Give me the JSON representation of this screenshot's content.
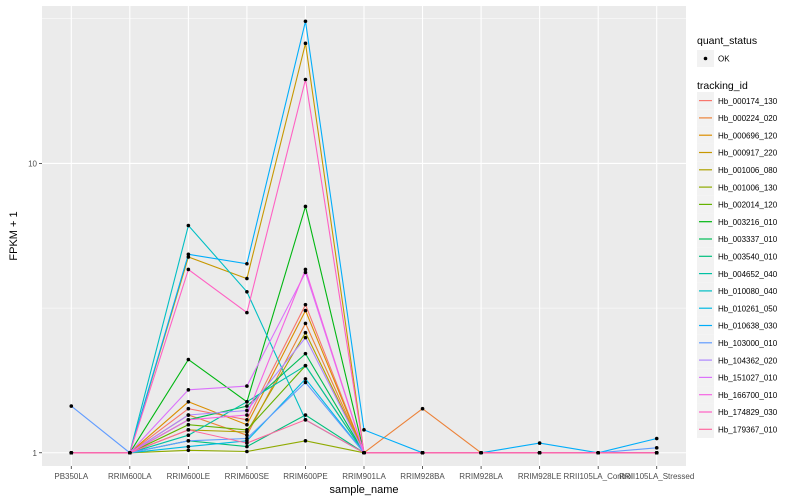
{
  "chart_data": {
    "type": "line",
    "xlabel": "sample_name",
    "ylabel": "FPKM + 1",
    "y_scale": "log10",
    "ylim": [
      0.9,
      35
    ],
    "y_ticks": [
      1,
      10
    ],
    "y_tick_labels": [
      "1",
      "10"
    ],
    "grid": true,
    "background": "#ebebeb",
    "legend_position": "right",
    "categories": [
      "PB350LA",
      "RRIM600LA",
      "RRIM600LE",
      "RRIM600SE",
      "RRIM600PE",
      "RRIM901LA",
      "RRIM928BA",
      "RRIM928LA",
      "RRIM928LE",
      "RRII105LA_Control",
      "RRII105LA_Stressed"
    ],
    "shape_legend": {
      "title": "quant_status",
      "items": [
        {
          "label": "OK",
          "shape": "point"
        }
      ]
    },
    "color_legend_title": "tracking_id",
    "series": [
      {
        "name": "Hb_000174_130",
        "color": "#F8766D",
        "values": [
          1,
          1,
          1.42,
          1.3,
          3.25,
          1,
          1,
          1,
          1,
          1,
          1
        ]
      },
      {
        "name": "Hb_000224_020",
        "color": "#EC8239",
        "values": [
          1,
          1,
          1.35,
          1.15,
          2.8,
          1,
          1.42,
          1,
          1,
          1,
          1
        ]
      },
      {
        "name": "Hb_000696_120",
        "color": "#DB8E00",
        "values": [
          1,
          1,
          1.5,
          1.25,
          3.1,
          1,
          1,
          1,
          1,
          1,
          1
        ]
      },
      {
        "name": "Hb_000917_220",
        "color": "#C79800",
        "values": [
          1,
          1,
          4.75,
          4.0,
          26.0,
          1,
          1,
          1,
          1,
          1,
          1
        ]
      },
      {
        "name": "Hb_001006_080",
        "color": "#AEA200",
        "values": [
          1,
          1,
          1.2,
          1.18,
          2.6,
          1,
          1,
          1,
          1,
          1,
          1
        ]
      },
      {
        "name": "Hb_001006_130",
        "color": "#8FAA00",
        "values": [
          1,
          1,
          1.02,
          1.01,
          1.1,
          1,
          1,
          1,
          1,
          1,
          1
        ]
      },
      {
        "name": "Hb_002014_120",
        "color": "#64B200",
        "values": [
          1,
          1,
          1.25,
          1.2,
          2.0,
          1,
          1,
          1,
          1,
          1,
          1
        ]
      },
      {
        "name": "Hb_003216_010",
        "color": "#00B712",
        "values": [
          1,
          1,
          2.1,
          1.5,
          7.1,
          1,
          1,
          1,
          1,
          1,
          1
        ]
      },
      {
        "name": "Hb_003337_010",
        "color": "#00BC56",
        "values": [
          1,
          1,
          1.3,
          1.45,
          2.2,
          1,
          1,
          1,
          1,
          1,
          1
        ]
      },
      {
        "name": "Hb_003540_010",
        "color": "#00BF7D",
        "values": [
          1,
          1,
          1.1,
          1.05,
          1.35,
          1,
          1,
          1,
          1,
          1,
          1
        ]
      },
      {
        "name": "Hb_004652_040",
        "color": "#00C1A3",
        "values": [
          1,
          1,
          1.15,
          1.5,
          2.0,
          1,
          1,
          1,
          1,
          1,
          1
        ]
      },
      {
        "name": "Hb_010080_040",
        "color": "#00BFC4",
        "values": [
          1,
          1,
          6.1,
          3.6,
          1.3,
          1,
          1,
          1,
          1,
          1,
          1
        ]
      },
      {
        "name": "Hb_010261_050",
        "color": "#00B9E3",
        "values": [
          1,
          1,
          1.05,
          1.1,
          1.8,
          1,
          1,
          1,
          1,
          1,
          1
        ]
      },
      {
        "name": "Hb_010638_030",
        "color": "#00ADFA",
        "values": [
          1,
          1,
          4.85,
          4.5,
          31.0,
          1.2,
          1,
          1,
          1.08,
          1,
          1.12
        ]
      },
      {
        "name": "Hb_103000_010",
        "color": "#619CFF",
        "values": [
          1.45,
          1,
          1.1,
          1.12,
          1.75,
          1,
          1,
          1,
          1,
          1,
          1.04
        ]
      },
      {
        "name": "Hb_104362_020",
        "color": "#AE87FF",
        "values": [
          1,
          1,
          1.35,
          1.4,
          2.5,
          1,
          1,
          1,
          1,
          1,
          1
        ]
      },
      {
        "name": "Hb_151027_010",
        "color": "#DB72FB",
        "values": [
          1,
          1,
          1.65,
          1.7,
          4.2,
          1,
          1,
          1,
          1,
          1,
          1
        ]
      },
      {
        "name": "Hb_166700_010",
        "color": "#F564E3",
        "values": [
          1,
          1,
          1.3,
          1.35,
          4.3,
          1,
          1,
          1,
          1,
          1,
          1
        ]
      },
      {
        "name": "Hb_174829_030",
        "color": "#FF61C3",
        "values": [
          1,
          1,
          4.3,
          3.05,
          19.5,
          1,
          1,
          1,
          1,
          1,
          1
        ]
      },
      {
        "name": "Hb_179367_010",
        "color": "#FF689F",
        "values": [
          1,
          1,
          1.2,
          1.08,
          1.3,
          1,
          1,
          1,
          1,
          1,
          1
        ]
      }
    ]
  }
}
